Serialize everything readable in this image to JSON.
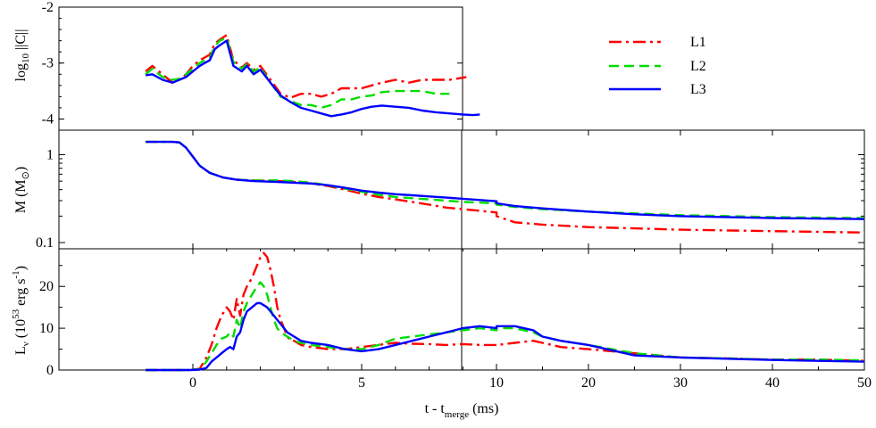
{
  "chart_data": [
    {
      "type": "line",
      "panel": "top",
      "ylabel_parts": [
        "log",
        "10",
        " ||C||"
      ],
      "yticks": [
        "-2",
        "-3",
        "-4"
      ],
      "ylim": [
        -4.2,
        -2.0
      ],
      "x_unit": "ms",
      "series": [
        {
          "name": "L1",
          "color": "#ff0000",
          "dash": "dashdot",
          "x": [
            -1.4,
            -1.2,
            -0.9,
            -0.6,
            -0.4,
            -0.2,
            0.0,
            0.1,
            0.2,
            0.35,
            0.5,
            0.65,
            0.8,
            1.0,
            1.2,
            1.45,
            1.6,
            1.8,
            2.0,
            2.3,
            2.6,
            2.9,
            3.2,
            3.5,
            3.8,
            4.1,
            4.4,
            4.7,
            5.0,
            5.3,
            5.6,
            6.0,
            6.4,
            6.8,
            7.2,
            7.6,
            8.1
          ],
          "y": [
            -3.15,
            -3.05,
            -3.2,
            -3.35,
            -3.3,
            -3.2,
            -3.05,
            -3.0,
            -2.95,
            -2.9,
            -2.85,
            -2.65,
            -2.58,
            -2.5,
            -2.95,
            -3.08,
            -3.0,
            -3.12,
            -3.05,
            -3.3,
            -3.55,
            -3.62,
            -3.55,
            -3.55,
            -3.6,
            -3.55,
            -3.45,
            -3.45,
            -3.45,
            -3.4,
            -3.35,
            -3.3,
            -3.35,
            -3.3,
            -3.3,
            -3.3,
            -3.25
          ]
        },
        {
          "name": "L2",
          "color": "#00dd00",
          "dash": "dashed",
          "x": [
            -1.4,
            -1.2,
            -0.9,
            -0.6,
            -0.4,
            -0.2,
            0.0,
            0.1,
            0.2,
            0.35,
            0.5,
            0.65,
            0.8,
            1.0,
            1.2,
            1.45,
            1.6,
            1.8,
            2.0,
            2.3,
            2.6,
            2.9,
            3.2,
            3.5,
            3.8,
            4.1,
            4.4,
            4.7,
            5.0,
            5.3,
            5.6,
            6.0,
            6.4,
            6.8,
            7.2,
            7.6
          ],
          "y": [
            -3.2,
            -3.1,
            -3.25,
            -3.3,
            -3.28,
            -3.2,
            -3.1,
            -3.05,
            -3.0,
            -2.95,
            -2.9,
            -2.7,
            -2.6,
            -2.55,
            -2.98,
            -3.1,
            -3.02,
            -3.15,
            -3.08,
            -3.35,
            -3.6,
            -3.68,
            -3.75,
            -3.75,
            -3.8,
            -3.75,
            -3.65,
            -3.65,
            -3.6,
            -3.58,
            -3.52,
            -3.5,
            -3.5,
            -3.5,
            -3.55,
            -3.55
          ]
        },
        {
          "name": "L3",
          "color": "#0000ff",
          "dash": "solid",
          "x": [
            -1.4,
            -1.2,
            -0.9,
            -0.6,
            -0.4,
            -0.2,
            0.0,
            0.1,
            0.2,
            0.35,
            0.5,
            0.65,
            0.8,
            1.0,
            1.2,
            1.45,
            1.6,
            1.8,
            2.0,
            2.3,
            2.6,
            2.9,
            3.2,
            3.5,
            3.8,
            4.1,
            4.4,
            4.7,
            5.0,
            5.3,
            5.6,
            6.0,
            6.4,
            6.8,
            7.2,
            7.6,
            8.0,
            8.3,
            8.5
          ],
          "y": [
            -3.22,
            -3.2,
            -3.3,
            -3.35,
            -3.3,
            -3.25,
            -3.15,
            -3.1,
            -3.05,
            -3.0,
            -2.95,
            -2.75,
            -2.68,
            -2.6,
            -3.05,
            -3.15,
            -3.05,
            -3.2,
            -3.12,
            -3.35,
            -3.58,
            -3.7,
            -3.8,
            -3.85,
            -3.9,
            -3.95,
            -3.92,
            -3.88,
            -3.82,
            -3.78,
            -3.76,
            -3.78,
            -3.8,
            -3.85,
            -3.88,
            -3.9,
            -3.92,
            -3.93,
            -3.92
          ]
        }
      ]
    },
    {
      "type": "line",
      "panel": "middle",
      "ylabel_parts": [
        "M (M",
        "⊙",
        ")"
      ],
      "yticks": [
        "1",
        "0.1"
      ],
      "yscale": "log",
      "ylim": [
        0.085,
        1.9
      ],
      "series": [
        {
          "name": "L1",
          "color": "#ff0000",
          "dash": "dashdot",
          "x": [
            -1.4,
            -0.9,
            -0.6,
            -0.4,
            -0.2,
            0.0,
            0.2,
            0.5,
            0.9,
            1.3,
            1.8,
            2.5,
            3.0,
            3.5,
            4.0,
            4.5,
            5.0,
            5.5,
            6.0,
            6.5,
            7.0,
            7.5,
            8.0,
            8.5,
            9.0,
            10,
            12,
            15,
            20,
            25,
            30,
            40,
            50
          ],
          "y": [
            1.4,
            1.4,
            1.4,
            1.38,
            1.2,
            0.95,
            0.75,
            0.62,
            0.55,
            0.52,
            0.51,
            0.5,
            0.49,
            0.47,
            0.44,
            0.4,
            0.36,
            0.33,
            0.31,
            0.29,
            0.27,
            0.25,
            0.24,
            0.23,
            0.22,
            0.2,
            0.17,
            0.16,
            0.15,
            0.145,
            0.14,
            0.135,
            0.13
          ]
        },
        {
          "name": "L2",
          "color": "#00dd00",
          "dash": "dashed",
          "x": [
            -1.4,
            -0.9,
            -0.6,
            -0.4,
            -0.2,
            0.0,
            0.2,
            0.5,
            0.9,
            1.3,
            1.8,
            2.5,
            3.0,
            3.5,
            4.0,
            4.5,
            5.0,
            5.5,
            6.0,
            6.5,
            7.0,
            7.5,
            8.0,
            8.5,
            9.0,
            10,
            12,
            15,
            20,
            25,
            30,
            40,
            50
          ],
          "y": [
            1.4,
            1.4,
            1.4,
            1.38,
            1.2,
            0.95,
            0.75,
            0.62,
            0.55,
            0.52,
            0.51,
            0.51,
            0.5,
            0.48,
            0.45,
            0.41,
            0.38,
            0.35,
            0.33,
            0.32,
            0.31,
            0.3,
            0.29,
            0.285,
            0.28,
            0.27,
            0.255,
            0.24,
            0.225,
            0.215,
            0.205,
            0.195,
            0.19
          ]
        },
        {
          "name": "L3",
          "color": "#0000ff",
          "dash": "solid",
          "x": [
            -1.4,
            -0.9,
            -0.6,
            -0.4,
            -0.2,
            0.0,
            0.2,
            0.5,
            0.9,
            1.3,
            1.8,
            2.5,
            3.0,
            3.5,
            4.0,
            4.5,
            5.0,
            5.5,
            6.0,
            6.5,
            7.0,
            7.5,
            8.0,
            8.5,
            9.0,
            10,
            12,
            15,
            20,
            25,
            30,
            40,
            50
          ],
          "y": [
            1.4,
            1.4,
            1.4,
            1.38,
            1.2,
            0.95,
            0.75,
            0.62,
            0.55,
            0.52,
            0.5,
            0.49,
            0.48,
            0.47,
            0.45,
            0.42,
            0.39,
            0.37,
            0.355,
            0.345,
            0.335,
            0.325,
            0.315,
            0.305,
            0.295,
            0.28,
            0.26,
            0.245,
            0.225,
            0.21,
            0.2,
            0.19,
            0.185
          ]
        }
      ]
    },
    {
      "type": "line",
      "panel": "bottom",
      "ylabel_parts": [
        "L",
        "ν",
        " (10",
        "53",
        " erg s",
        "-1",
        ")"
      ],
      "yticks": [
        "0",
        "10",
        "20"
      ],
      "ylim": [
        0,
        29
      ],
      "xlabel_parts": [
        "t - t",
        "merge",
        " (ms)"
      ],
      "xtick_labels": [
        "0",
        "5",
        "10",
        "20",
        "30",
        "40",
        "50"
      ],
      "xtick_values": [
        0,
        5,
        10,
        20,
        30,
        40,
        50
      ],
      "xscale_note": "piecewise: linear 0-9 ms, compressed 9-50 ms",
      "series": [
        {
          "name": "L1",
          "color": "#ff0000",
          "dash": "dashdot",
          "x": [
            -1.4,
            -0.5,
            -0.1,
            0.2,
            0.4,
            0.55,
            0.7,
            0.85,
            1.0,
            1.1,
            1.2,
            1.3,
            1.4,
            1.5,
            1.6,
            1.75,
            1.9,
            2.0,
            2.1,
            2.2,
            2.3,
            2.4,
            2.5,
            2.6,
            2.7,
            2.8,
            2.9,
            3.0,
            3.2,
            3.5,
            4.0,
            4.5,
            5.0,
            5.5,
            6.0,
            6.5,
            7.0,
            7.5,
            8.0,
            8.5,
            9.0,
            10,
            12,
            14,
            15,
            17,
            20,
            25,
            30,
            35,
            40,
            45,
            50
          ],
          "y": [
            0,
            0,
            0,
            0.3,
            3,
            6,
            10,
            13,
            15,
            14,
            12,
            17,
            13,
            18,
            20,
            22,
            25,
            27,
            28,
            27,
            24,
            20,
            15,
            12,
            10,
            8,
            7,
            7,
            6,
            5.5,
            5,
            5,
            5.5,
            6,
            6.5,
            6.3,
            6.2,
            6.0,
            6.2,
            6.0,
            6.0,
            6,
            6.5,
            7,
            6.5,
            5.5,
            5,
            4,
            3,
            2.8,
            2.5,
            2.5,
            2.2
          ]
        },
        {
          "name": "L2",
          "color": "#00dd00",
          "dash": "dashed",
          "x": [
            -1.4,
            -0.5,
            -0.1,
            0.2,
            0.4,
            0.55,
            0.7,
            0.85,
            1.0,
            1.1,
            1.2,
            1.3,
            1.4,
            1.5,
            1.6,
            1.75,
            1.9,
            2.0,
            2.1,
            2.2,
            2.3,
            2.4,
            2.5,
            2.6,
            2.7,
            2.8,
            2.9,
            3.0,
            3.2,
            3.5,
            4.0,
            4.5,
            5.0,
            5.5,
            6.0,
            6.5,
            7.0,
            7.5,
            8.0,
            8.5,
            9.0,
            10,
            12,
            14,
            15,
            17,
            20,
            25,
            30,
            35,
            40,
            45,
            50
          ],
          "y": [
            0,
            0,
            0,
            0.2,
            2,
            4,
            6,
            7.5,
            8,
            9,
            8,
            12,
            10,
            14,
            16,
            18,
            20,
            21,
            20,
            18,
            15,
            12,
            10,
            9,
            8.5,
            8,
            7.5,
            7,
            6.5,
            6,
            5.5,
            5,
            5,
            6,
            7.5,
            8,
            8.5,
            9,
            9.5,
            10,
            9.5,
            10,
            10,
            9,
            8,
            7,
            6,
            4,
            3,
            2.8,
            2.5,
            2.5,
            2.3
          ]
        },
        {
          "name": "L3",
          "color": "#0000ff",
          "dash": "solid",
          "x": [
            -1.4,
            -0.5,
            -0.1,
            0.2,
            0.4,
            0.55,
            0.7,
            0.85,
            1.0,
            1.1,
            1.2,
            1.3,
            1.4,
            1.5,
            1.6,
            1.75,
            1.9,
            2.0,
            2.1,
            2.2,
            2.3,
            2.4,
            2.5,
            2.6,
            2.7,
            2.8,
            2.9,
            3.0,
            3.2,
            3.5,
            4.0,
            4.5,
            5.0,
            5.5,
            6.0,
            6.5,
            7.0,
            7.5,
            8.0,
            8.5,
            9.0,
            10,
            12,
            14,
            15,
            17,
            20,
            25,
            30,
            35,
            40,
            45,
            50
          ],
          "y": [
            0,
            0,
            0,
            0.1,
            0.5,
            2,
            3,
            4,
            5,
            5.5,
            5,
            8,
            9,
            12,
            14,
            15,
            16,
            16,
            15.5,
            15,
            14,
            13,
            12,
            11,
            10,
            9,
            8.5,
            8,
            7,
            6.5,
            6,
            5,
            4.5,
            5,
            6,
            7,
            8,
            9,
            10,
            10.5,
            10,
            10.5,
            10.5,
            9.5,
            8,
            7,
            6,
            3.5,
            3,
            2.7,
            2.4,
            2.2,
            2
          ]
        }
      ]
    }
  ],
  "legend": [
    {
      "label": "L1",
      "color": "#ff0000",
      "dash": "dashdot"
    },
    {
      "label": "L2",
      "color": "#00dd00",
      "dash": "dashed"
    },
    {
      "label": "L3",
      "color": "#0000ff",
      "dash": "solid"
    }
  ]
}
